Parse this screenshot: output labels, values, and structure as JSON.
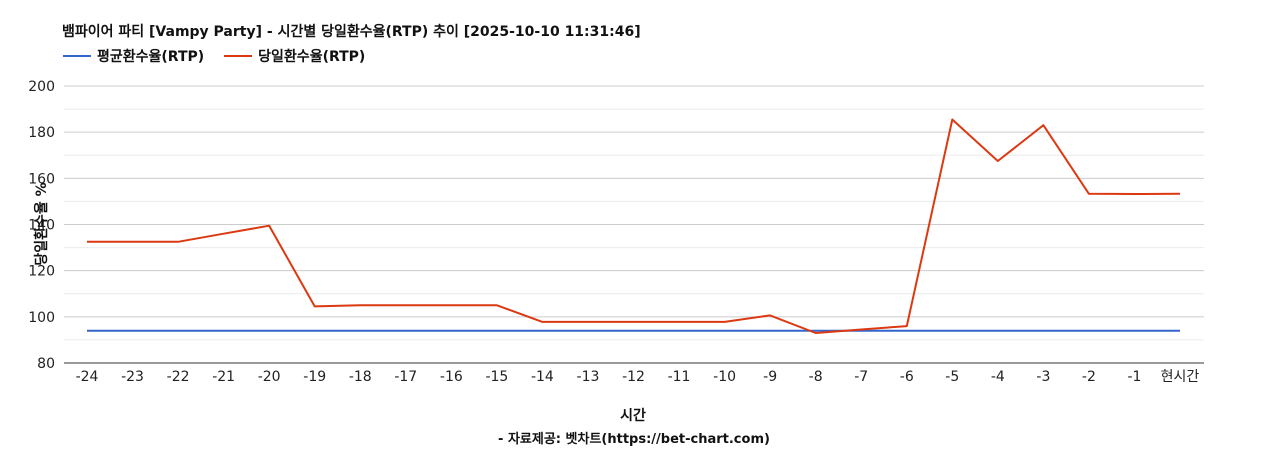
{
  "title": "뱀파이어 파티 [Vampy Party] - 시간별 당일환수율(RTP) 추이 [2025-10-10 11:31:46]",
  "footer": "- 자료제공: 벳차트(https://bet-chart.com)",
  "colors": {
    "average": "#3366cc",
    "daily": "#dc3912",
    "grid": "#cccccc",
    "axis": "#333333"
  },
  "chart_data": {
    "type": "line",
    "xlabel": "시간",
    "ylabel": "당일환수율 %",
    "ylim": [
      80,
      200
    ],
    "yticks": [
      80,
      100,
      120,
      140,
      160,
      180,
      200
    ],
    "grid": true,
    "legend_position": "top-left",
    "categories": [
      "-24",
      "-23",
      "-22",
      "-21",
      "-20",
      "-19",
      "-18",
      "-17",
      "-16",
      "-15",
      "-14",
      "-13",
      "-12",
      "-11",
      "-10",
      "-9",
      "-8",
      "-7",
      "-6",
      "-5",
      "-4",
      "-3",
      "-2",
      "-1",
      "현시간"
    ],
    "series": [
      {
        "name": "평균환수율(RTP)",
        "color": "#3366cc",
        "values": [
          94,
          94,
          94,
          94,
          94,
          94,
          94,
          94,
          94,
          94,
          94,
          94,
          94,
          94,
          94,
          94,
          94,
          94,
          94,
          94,
          94,
          94,
          94,
          94,
          94
        ]
      },
      {
        "name": "당일환수율(RTP)",
        "color": "#dc3912",
        "values": [
          132.5,
          132.5,
          132.5,
          136,
          139.5,
          104.5,
          105,
          105,
          105,
          105,
          97.8,
          97.8,
          97.8,
          97.8,
          97.8,
          100.6,
          93,
          94.5,
          96,
          185.5,
          167.5,
          183,
          153.3,
          153.2,
          153.3
        ]
      }
    ]
  }
}
